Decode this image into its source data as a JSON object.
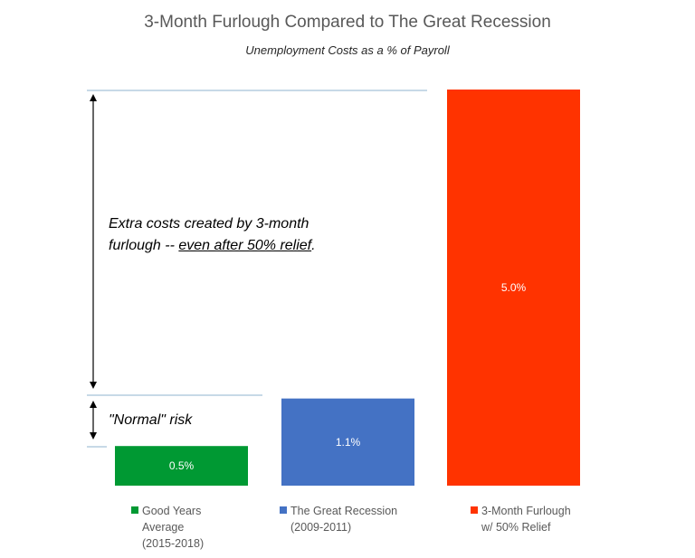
{
  "chart_data": {
    "type": "bar",
    "title": "3-Month Furlough Compared to The Great Recession",
    "subtitle": "Unemployment Costs as a % of Payroll",
    "categories": [
      "Good Years Average (2015-2018)",
      "The Great Recession (2009-2011)",
      "3-Month Furlough w/ 50% Relief"
    ],
    "values": [
      0.5,
      1.1,
      5.0
    ],
    "data_labels": [
      "0.5%",
      "1.1%",
      "5.0%"
    ],
    "colors": [
      "#009933",
      "#4472C4",
      "#FF3300"
    ],
    "ylim": [
      0,
      5.0
    ],
    "grid": false,
    "legend_position": "bottom"
  },
  "legend": [
    {
      "line1": "Good Years",
      "line2": "Average",
      "line3": "(2015-2018)",
      "color": "#009933"
    },
    {
      "line1": "The Great Recession",
      "line2": "(2009-2011)",
      "line3": "",
      "color": "#4472C4"
    },
    {
      "line1": "3-Month Furlough",
      "line2": "w/ 50% Relief",
      "line3": "",
      "color": "#FF3300"
    }
  ],
  "annotations": {
    "extra_line1": "Extra costs created by 3-month",
    "extra_line2_prefix": "furlough -- ",
    "extra_line2_underlined": "even after 50% relief",
    "extra_line2_suffix": ".",
    "normal_risk": "\"Normal\" risk"
  }
}
